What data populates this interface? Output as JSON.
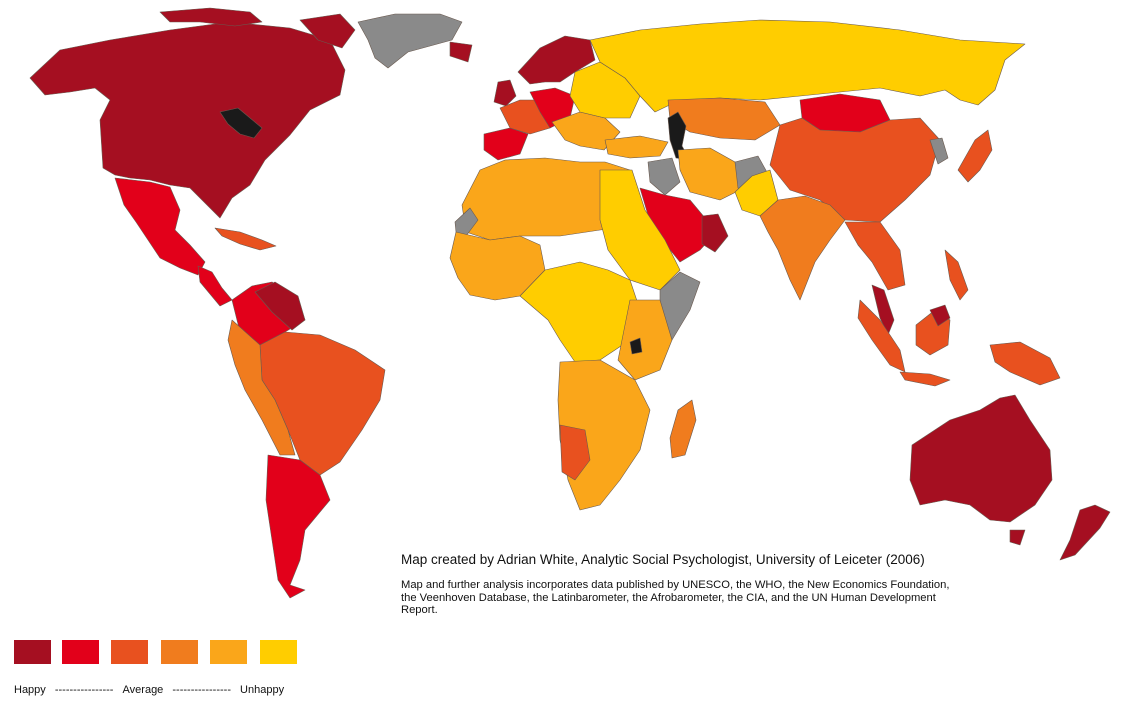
{
  "colors": {
    "level1": "#a50f21",
    "level2": "#e2001a",
    "level3": "#e8511f",
    "level4": "#f07c1e",
    "level5": "#faa61a",
    "level6": "#ffcd00",
    "no_data": "#8a8a8a",
    "water": "#1a1a1a"
  },
  "credit": "Map created by Adrian White, Analytic Social Psychologist, University of Leiceter (2006)",
  "notes": "Map and further analysis incorporates data published by UNESCO, the WHO, the New Economics Foundation, the Veenhoven Database, the Latinbarometer, the Afrobarometer, the CIA, and the UN Human Development Report.",
  "legend": {
    "swatches": [
      "level1",
      "level2",
      "level3",
      "level4",
      "level5",
      "level6"
    ],
    "scale_happy": "Happy",
    "scale_dash1": "----------------",
    "scale_average": "Average",
    "scale_dash2": "----------------",
    "scale_unhappy": "Unhappy"
  }
}
